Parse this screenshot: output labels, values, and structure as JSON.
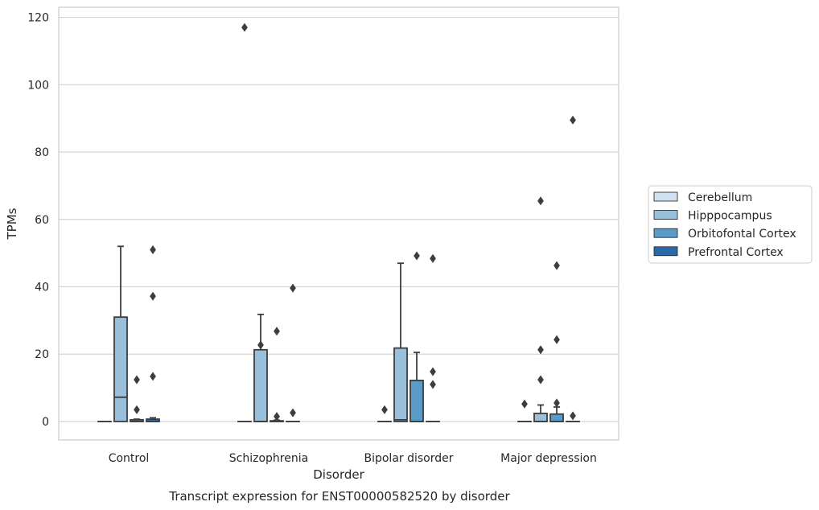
{
  "chart_data": {
    "type": "box",
    "title": "Transcript expression for ENST00000582520 by disorder",
    "xlabel": "Disorder",
    "ylabel": "TPMs",
    "ylim": [
      -5.5,
      123
    ],
    "yticks": [
      0,
      20,
      40,
      60,
      80,
      100,
      120
    ],
    "grid": "horizontal",
    "legend_position": "right",
    "categories": [
      "Control",
      "Schizophrenia",
      "Bipolar disorder",
      "Major depression"
    ],
    "series": [
      {
        "name": "Cerebellum",
        "color": "#d0e1f2",
        "boxes": [
          {
            "q1": 0,
            "median": 0,
            "q3": 0,
            "whisker_low": 0,
            "whisker_high": 0,
            "outliers": []
          },
          {
            "q1": 0,
            "median": 0,
            "q3": 0,
            "whisker_low": 0,
            "whisker_high": 0,
            "outliers": [
              117
            ]
          },
          {
            "q1": 0,
            "median": 0,
            "q3": 0,
            "whisker_low": 0,
            "whisker_high": 0,
            "outliers": [
              3.5
            ]
          },
          {
            "q1": 0,
            "median": 0,
            "q3": 0,
            "whisker_low": 0,
            "whisker_high": 0,
            "outliers": [
              5.2
            ]
          }
        ]
      },
      {
        "name": "Hipppocampus",
        "color": "#9ac0db",
        "boxes": [
          {
            "q1": 0,
            "median": 7.2,
            "q3": 31,
            "whisker_low": 0,
            "whisker_high": 52,
            "outliers": []
          },
          {
            "q1": 0,
            "median": 0,
            "q3": 21.3,
            "whisker_low": 0,
            "whisker_high": 31.8,
            "outliers": [
              22.7
            ]
          },
          {
            "q1": 0,
            "median": 0.5,
            "q3": 21.8,
            "whisker_low": 0,
            "whisker_high": 47,
            "outliers": []
          },
          {
            "q1": 0,
            "median": 0,
            "q3": 2.4,
            "whisker_low": 0,
            "whisker_high": 4.9,
            "outliers": [
              65.5,
              21.3,
              12.4
            ]
          }
        ]
      },
      {
        "name": "Orbitofontal Cortex",
        "color": "#5b9bc8",
        "boxes": [
          {
            "q1": 0,
            "median": 0,
            "q3": 0.5,
            "whisker_low": 0,
            "whisker_high": 0.7,
            "outliers": [
              12.4,
              3.5
            ]
          },
          {
            "q1": 0,
            "median": 0,
            "q3": 0.2,
            "whisker_low": 0,
            "whisker_high": 0.4,
            "outliers": [
              26.8,
              1.5
            ]
          },
          {
            "q1": 0,
            "median": 0,
            "q3": 12.2,
            "whisker_low": 0,
            "whisker_high": 20.5,
            "outliers": [
              49.2
            ]
          },
          {
            "q1": 0,
            "median": 0,
            "q3": 2.2,
            "whisker_low": 0,
            "whisker_high": 4.3,
            "outliers": [
              46.3,
              24.3,
              5.5
            ]
          }
        ]
      },
      {
        "name": "Prefrontal Cortex",
        "color": "#2b6aa8",
        "boxes": [
          {
            "q1": 0,
            "median": 0,
            "q3": 0.7,
            "whisker_low": 0,
            "whisker_high": 1.1,
            "outliers": [
              51,
              37.2,
              13.4
            ]
          },
          {
            "q1": 0,
            "median": 0,
            "q3": 0,
            "whisker_low": 0,
            "whisker_high": 0,
            "outliers": [
              39.6,
              2.6
            ]
          },
          {
            "q1": 0,
            "median": 0,
            "q3": 0,
            "whisker_low": 0,
            "whisker_high": 0,
            "outliers": [
              48.4,
              14.8,
              11
            ]
          },
          {
            "q1": 0,
            "median": 0,
            "q3": 0,
            "whisker_low": 0,
            "whisker_high": 0,
            "outliers": [
              89.5,
              1.7
            ]
          }
        ]
      }
    ]
  }
}
